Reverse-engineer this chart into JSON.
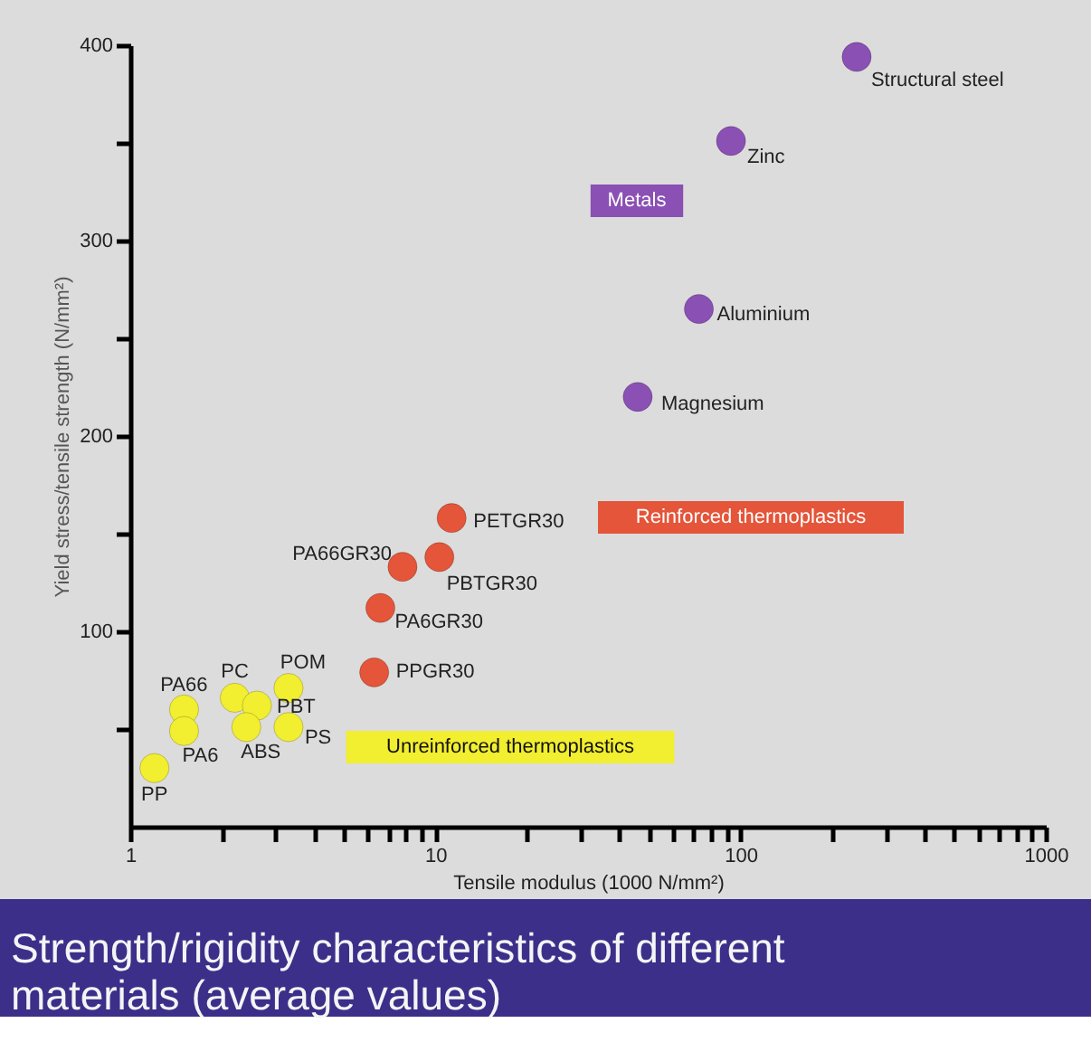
{
  "chart_data": {
    "type": "scatter",
    "title": "Strength/rigidity characteristics of different materials (average values)",
    "xlabel": "Tensile modulus (1000 N/mm²)",
    "ylabel": "Yield stress/tensile strength (N/mm²)",
    "log": "x",
    "marker": "circle",
    "xlim": [
      1,
      1000
    ],
    "xticks": [
      1,
      {
        "value": 2,
        "label": null
      },
      {
        "value": 3,
        "label": null
      },
      {
        "value": 4,
        "label": null
      },
      {
        "value": 5,
        "label": null
      },
      {
        "value": 6,
        "label": null
      },
      {
        "value": 7,
        "label": null
      },
      {
        "value": 8,
        "label": null
      },
      {
        "value": 9,
        "label": null
      },
      10,
      {
        "value": 20,
        "label": null
      },
      {
        "value": 30,
        "label": null
      },
      {
        "value": 40,
        "label": null
      },
      {
        "value": 50,
        "label": null
      },
      {
        "value": 60,
        "label": null
      },
      {
        "value": 70,
        "label": null
      },
      {
        "value": 80,
        "label": null
      },
      {
        "value": 90,
        "label": null
      },
      100,
      {
        "value": 200,
        "label": null
      },
      {
        "value": 300,
        "label": null
      },
      {
        "value": 400,
        "label": null
      },
      {
        "value": 500,
        "label": null
      },
      {
        "value": 600,
        "label": null
      },
      {
        "value": 700,
        "label": null
      },
      {
        "value": 800,
        "label": null
      },
      {
        "value": 900,
        "label": null
      },
      1000
    ],
    "ylim": [
      0,
      400
    ],
    "yticks": [
      {
        "value": 50,
        "label": null
      },
      100,
      {
        "value": 150,
        "label": null
      },
      200,
      {
        "value": 250,
        "label": null
      },
      300,
      {
        "value": 350,
        "label": null
      },
      400
    ],
    "series": [
      {
        "name": "Metals",
        "color": "#8a50b4",
        "x": [
          240,
          93,
          73,
          46
        ],
        "values": [
          394,
          351,
          265,
          220
        ]
      },
      {
        "name": "Reinforced thermoplastics",
        "color": "#e4553a",
        "x": [
          11.3,
          7.8,
          10.3,
          6.6,
          6.3
        ],
        "values": [
          158,
          133,
          138,
          112,
          79
        ]
      },
      {
        "name": "Unreinforced thermoplastics",
        "color": "#f2ee30",
        "x": [
          3.3,
          2.2,
          2.6,
          2.4,
          3.3,
          1.5,
          1.5,
          1.2
        ],
        "values": [
          71,
          66,
          62,
          51,
          51,
          60,
          49,
          30
        ]
      }
    ],
    "annotations": [
      {
        "text": "Structural steel",
        "x": 240,
        "y": 394
      },
      {
        "text": "Zinc",
        "x": 93,
        "y": 351
      },
      {
        "text": "Aluminium",
        "x": 73,
        "y": 265
      },
      {
        "text": "Magnesium",
        "x": 46,
        "y": 220
      },
      {
        "text": "PETGR30",
        "x": 11.3,
        "y": 158
      },
      {
        "text": "PA66GR30",
        "x": 7.8,
        "y": 133
      },
      {
        "text": "PBTGR30",
        "x": 10.3,
        "y": 138
      },
      {
        "text": "PA6GR30",
        "x": 6.6,
        "y": 112
      },
      {
        "text": "PPGR30",
        "x": 6.3,
        "y": 79
      },
      {
        "text": "POM",
        "x": 3.3,
        "y": 71
      },
      {
        "text": "PC",
        "x": 2.2,
        "y": 66
      },
      {
        "text": "PBT",
        "x": 2.6,
        "y": 62
      },
      {
        "text": "ABS",
        "x": 2.4,
        "y": 51
      },
      {
        "text": "PS",
        "x": 3.3,
        "y": 51
      },
      {
        "text": "PA66",
        "x": 1.5,
        "y": 60
      },
      {
        "text": "PA6",
        "x": 1.5,
        "y": 49
      },
      {
        "text": "PP",
        "x": 1.2,
        "y": 30
      }
    ]
  }
}
